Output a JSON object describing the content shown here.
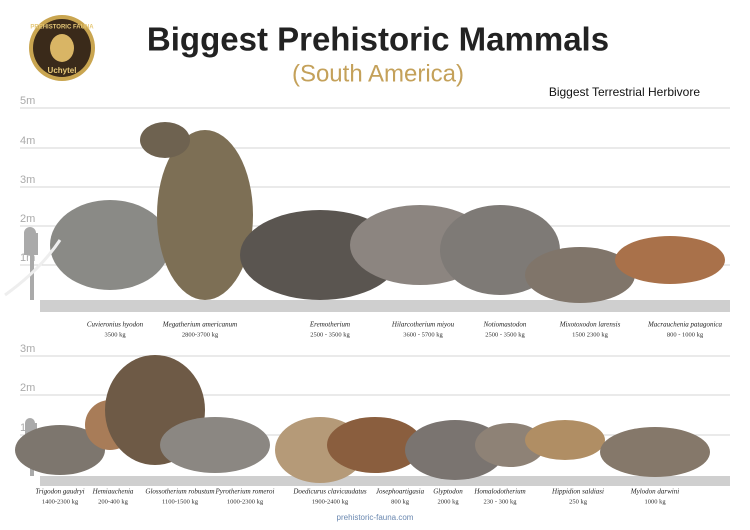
{
  "header": {
    "logo_top": "PREHISTORIC FAUNA",
    "logo_bottom": "Uchytel",
    "title": "Biggest Prehistoric Mammals",
    "subtitle": "(South America)"
  },
  "top_panel": {
    "label": "Biggest Terrestrial Herbivore",
    "scale": [
      "5m",
      "4m",
      "3m",
      "2m",
      "1m"
    ],
    "animals": [
      {
        "name": "Cuvieronius hyodon",
        "weight": "3500 kg"
      },
      {
        "name": "Megatherium americanum",
        "weight": "2800-3700 kg"
      },
      {
        "name": "Eremotherium",
        "weight": "2500 - 3500 kg"
      },
      {
        "name": "Hilarcotherium miyou",
        "weight": "3600 - 5700 kg"
      },
      {
        "name": "Notiomastodon",
        "weight": "2500 - 3500 kg"
      },
      {
        "name": "Mixotoxodon larensis",
        "weight": "1500 2300 kg"
      },
      {
        "name": "Macrauchenia patagonica",
        "weight": "800 - 1000 kg"
      }
    ]
  },
  "bottom_panel": {
    "scale": [
      "3m",
      "2m",
      "1m"
    ],
    "animals": [
      {
        "name": "Trigodon gaudryi",
        "weight": "1400-2300 kg"
      },
      {
        "name": "Hemiauchenia",
        "weight": "200-400 kg"
      },
      {
        "name": "Glossotherium robustum",
        "weight": "1100-1500 kg"
      },
      {
        "name": "Pyrotherium romeroi",
        "weight": "1000-2300 kg"
      },
      {
        "name": "Doedicurus clavicaudatus",
        "weight": "1900-2400 kg"
      },
      {
        "name": "Josephoartigasia",
        "weight": "800 kg"
      },
      {
        "name": "Glyptodon",
        "weight": "2000 kg"
      },
      {
        "name": "Homalodotherium",
        "weight": "230 - 300 kg"
      },
      {
        "name": "Hippidion saldiasi",
        "weight": "250 kg"
      },
      {
        "name": "Mylodon darwini",
        "weight": "1000 kg"
      }
    ]
  },
  "footer": "prehistoric-fauna.com"
}
